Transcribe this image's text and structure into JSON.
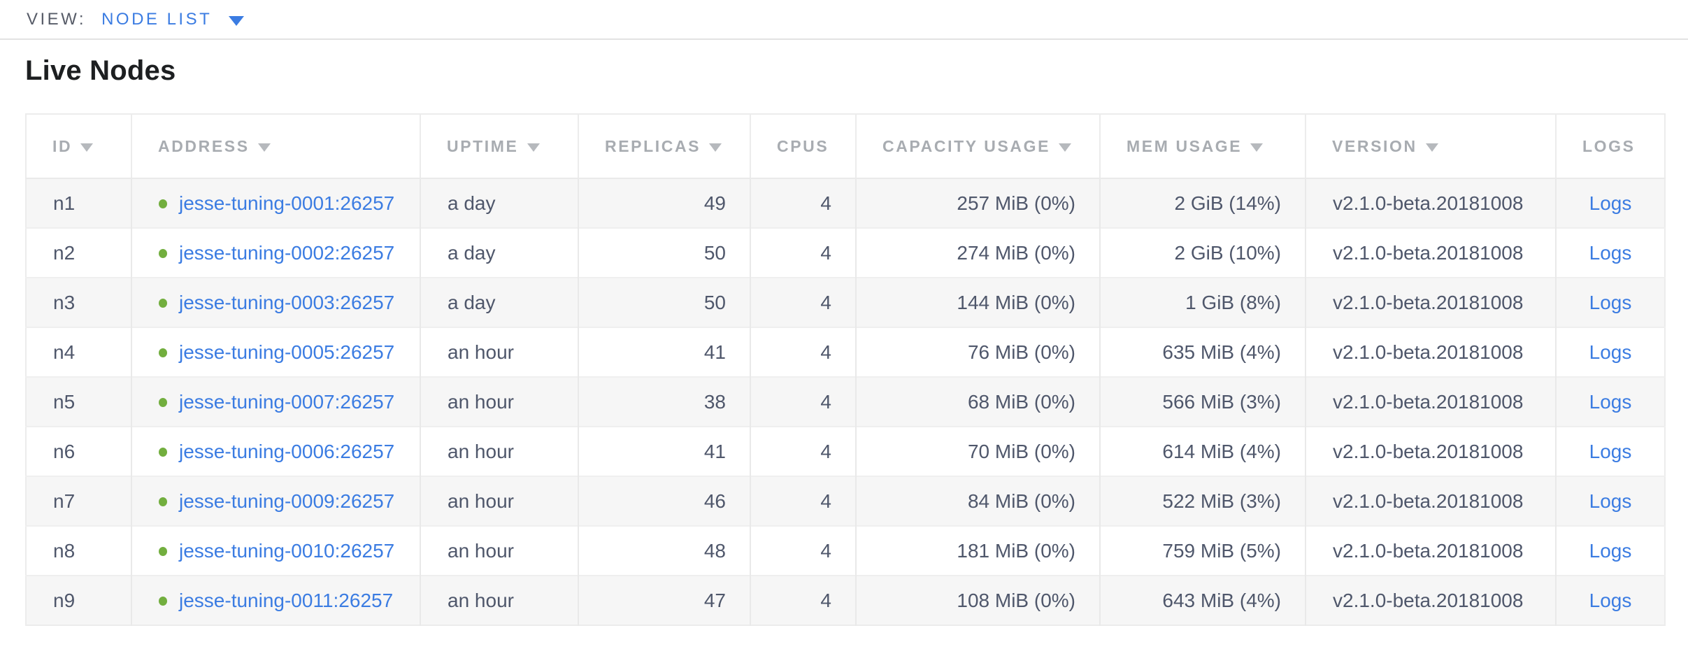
{
  "view_bar": {
    "label": "VIEW:",
    "selected_view": "NODE LIST"
  },
  "page_title": "Live Nodes",
  "colors": {
    "link_blue": "#3b7ce2",
    "live_node_green": "#72ae3e",
    "header_gray": "#a8acb1",
    "body_text": "#4f576b",
    "alt_row_bg": "#f6f6f6"
  },
  "table": {
    "headers": {
      "id": "ID",
      "address": "ADDRESS",
      "uptime": "UPTIME",
      "replicas": "REPLICAS",
      "cpus": "CPUS",
      "capacity": "CAPACITY USAGE",
      "mem": "MEM USAGE",
      "version": "VERSION",
      "logs": "LOGS"
    },
    "sorted_columns": [
      "id",
      "address",
      "uptime",
      "replicas",
      "capacity",
      "mem",
      "version"
    ],
    "rows": [
      {
        "id": "n1",
        "address": "jesse-tuning-0001:26257",
        "uptime": "a day",
        "replicas": "49",
        "cpus": "4",
        "capacity": "257 MiB (0%)",
        "mem": "2 GiB (14%)",
        "version": "v2.1.0-beta.20181008",
        "logs": "Logs"
      },
      {
        "id": "n2",
        "address": "jesse-tuning-0002:26257",
        "uptime": "a day",
        "replicas": "50",
        "cpus": "4",
        "capacity": "274 MiB (0%)",
        "mem": "2 GiB (10%)",
        "version": "v2.1.0-beta.20181008",
        "logs": "Logs"
      },
      {
        "id": "n3",
        "address": "jesse-tuning-0003:26257",
        "uptime": "a day",
        "replicas": "50",
        "cpus": "4",
        "capacity": "144 MiB (0%)",
        "mem": "1 GiB (8%)",
        "version": "v2.1.0-beta.20181008",
        "logs": "Logs"
      },
      {
        "id": "n4",
        "address": "jesse-tuning-0005:26257",
        "uptime": "an hour",
        "replicas": "41",
        "cpus": "4",
        "capacity": "76 MiB (0%)",
        "mem": "635 MiB (4%)",
        "version": "v2.1.0-beta.20181008",
        "logs": "Logs"
      },
      {
        "id": "n5",
        "address": "jesse-tuning-0007:26257",
        "uptime": "an hour",
        "replicas": "38",
        "cpus": "4",
        "capacity": "68 MiB (0%)",
        "mem": "566 MiB (3%)",
        "version": "v2.1.0-beta.20181008",
        "logs": "Logs"
      },
      {
        "id": "n6",
        "address": "jesse-tuning-0006:26257",
        "uptime": "an hour",
        "replicas": "41",
        "cpus": "4",
        "capacity": "70 MiB (0%)",
        "mem": "614 MiB (4%)",
        "version": "v2.1.0-beta.20181008",
        "logs": "Logs"
      },
      {
        "id": "n7",
        "address": "jesse-tuning-0009:26257",
        "uptime": "an hour",
        "replicas": "46",
        "cpus": "4",
        "capacity": "84 MiB (0%)",
        "mem": "522 MiB (3%)",
        "version": "v2.1.0-beta.20181008",
        "logs": "Logs"
      },
      {
        "id": "n8",
        "address": "jesse-tuning-0010:26257",
        "uptime": "an hour",
        "replicas": "48",
        "cpus": "4",
        "capacity": "181 MiB (0%)",
        "mem": "759 MiB (5%)",
        "version": "v2.1.0-beta.20181008",
        "logs": "Logs"
      },
      {
        "id": "n9",
        "address": "jesse-tuning-0011:26257",
        "uptime": "an hour",
        "replicas": "47",
        "cpus": "4",
        "capacity": "108 MiB (0%)",
        "mem": "643 MiB (4%)",
        "version": "v2.1.0-beta.20181008",
        "logs": "Logs"
      }
    ]
  }
}
